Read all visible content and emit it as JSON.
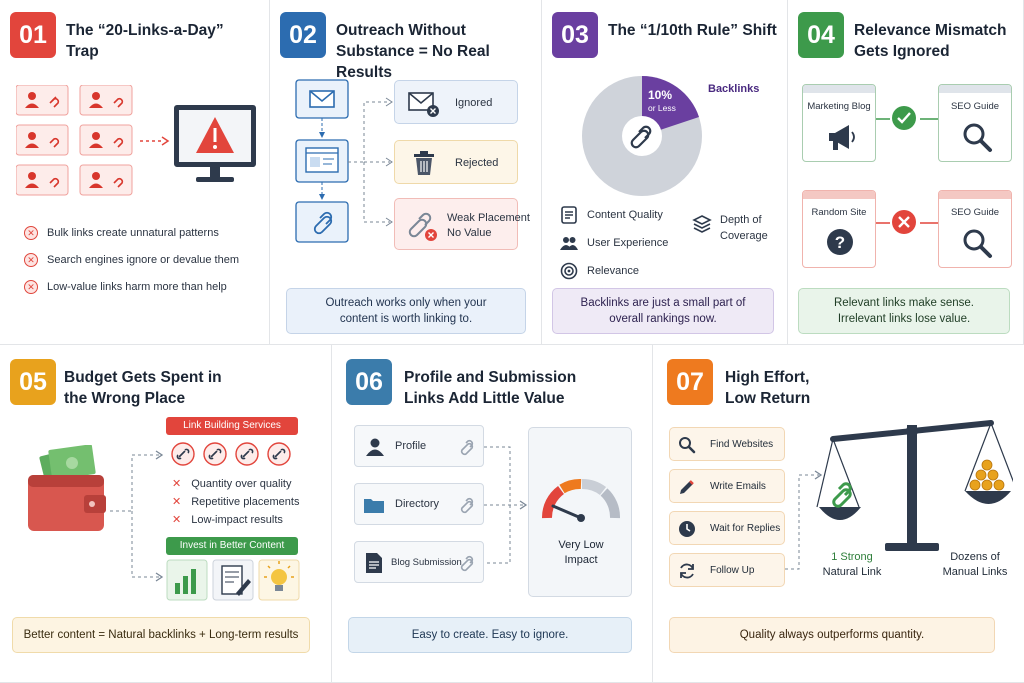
{
  "colors": {
    "p1": "#e2453c",
    "p2": "#2c6cb0",
    "p3": "#6a3fa0",
    "p4": "#3d9a4b",
    "p5": "#e8a21d",
    "p6": "#3b7cab",
    "p7": "#ee7a1f"
  },
  "panel1": {
    "number": "01",
    "title": [
      "The “20-Links-a-Day”",
      "Trap"
    ],
    "bullets": [
      "Bulk links create unnatural patterns",
      "Search engines ignore or devalue them",
      "Low-value links harm more than help"
    ]
  },
  "panel2": {
    "number": "02",
    "title": [
      "Outreach Without",
      "Substance = No Real Results"
    ],
    "outcomes": [
      "Ignored",
      "Rejected",
      "Weak Placement\nNo Value"
    ],
    "footer": [
      "Outreach works only when your",
      "content is worth linking to."
    ]
  },
  "panel3": {
    "number": "03",
    "title": [
      "The “1/10th Rule” Shift"
    ],
    "pie_label_pct": "10%",
    "pie_label_sub": "or Less",
    "pie_legend": "Backlinks",
    "factors": [
      "Content Quality",
      "Depth of",
      "Coverage",
      "User Experience",
      "Relevance"
    ],
    "footer": [
      "Backlinks are just a small part of",
      "overall rankings now."
    ]
  },
  "panel4": {
    "number": "04",
    "title": [
      "Relevance Mismatch",
      "Gets Ignored"
    ],
    "top_left": "Marketing Blog",
    "top_right": "SEO Guide",
    "bottom_left": "Random Site",
    "bottom_right": "SEO Guide",
    "footer": [
      "Relevant links make sense.",
      "Irrelevant links lose value."
    ]
  },
  "panel5": {
    "number": "05",
    "title": [
      "Budget Gets Spent in",
      "the Wrong Place"
    ],
    "services_label": "Link Building Services",
    "bad_items": [
      "Quantity over quality",
      "Repetitive placements",
      "Low-impact results"
    ],
    "invest_label": "Invest in Better Content",
    "footer": [
      "Better content = Natural backlinks + Long-term results"
    ]
  },
  "panel6": {
    "number": "06",
    "title": [
      "Profile and Submission",
      "Links Add Little Value"
    ],
    "items": [
      "Profile",
      "Directory",
      "Blog Submission"
    ],
    "gauge_label": [
      "Very Low",
      "Impact"
    ],
    "footer": [
      "Easy to create. Easy to ignore."
    ]
  },
  "panel7": {
    "number": "07",
    "title": [
      "High Effort,",
      "Low Return"
    ],
    "steps": [
      "Find Websites",
      "Write Emails",
      "Wait for Replies",
      "Follow Up"
    ],
    "left_pan": [
      "1 Strong",
      "Natural Link"
    ],
    "right_pan": [
      "Dozens of",
      "Manual Links"
    ],
    "footer": [
      "Quality always outperforms quantity."
    ]
  }
}
